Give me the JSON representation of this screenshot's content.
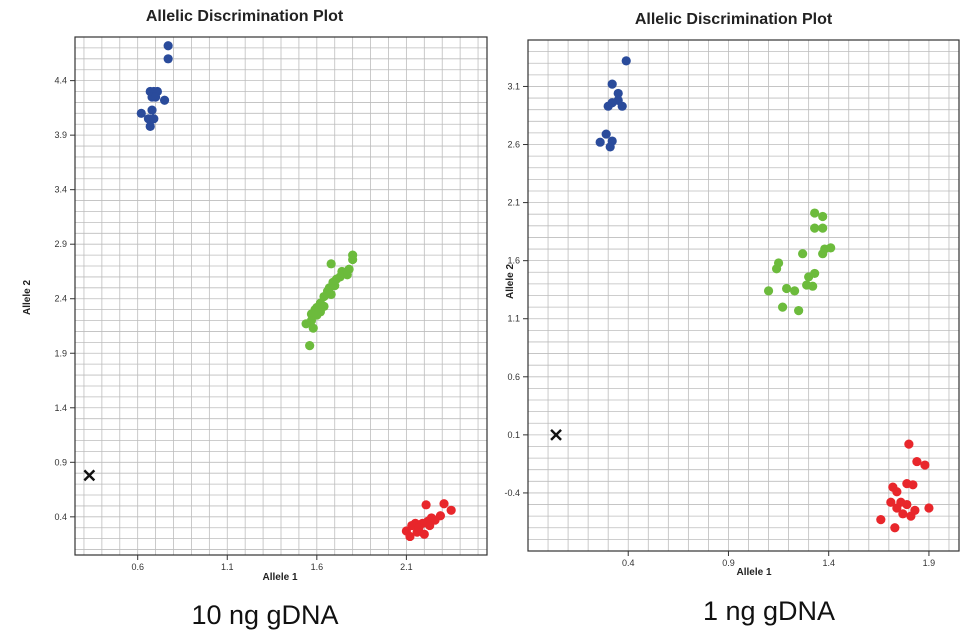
{
  "chart_data": [
    {
      "type": "scatter",
      "title": "Allelic Discrimination Plot",
      "xlabel": "Allele 1",
      "ylabel": "Allele 2",
      "caption": "10 ng gDNA",
      "xlim": [
        0.25,
        2.55
      ],
      "ylim": [
        0.05,
        4.8
      ],
      "xticks": [
        0.6,
        1.1,
        1.6,
        2.1
      ],
      "yticks": [
        0.4,
        0.9,
        1.4,
        1.9,
        2.4,
        2.9,
        3.4,
        3.9,
        4.4
      ],
      "grid": true,
      "colors": {
        "allele2": "#2a4b9b",
        "heterozygous": "#6cbb3c",
        "allele1": "#e8262b",
        "ntc": "#111111"
      },
      "series": [
        {
          "group": "allele2",
          "points": [
            [
              0.77,
              4.72
            ],
            [
              0.77,
              4.6
            ],
            [
              0.67,
              4.3
            ],
            [
              0.69,
              4.3
            ],
            [
              0.71,
              4.3
            ],
            [
              0.68,
              4.25
            ],
            [
              0.7,
              4.25
            ],
            [
              0.75,
              4.22
            ],
            [
              0.68,
              4.13
            ],
            [
              0.62,
              4.1
            ],
            [
              0.66,
              4.05
            ],
            [
              0.69,
              4.05
            ],
            [
              0.67,
              3.98
            ]
          ]
        },
        {
          "group": "heterozygous",
          "points": [
            [
              1.8,
              2.8
            ],
            [
              1.8,
              2.76
            ],
            [
              1.68,
              2.72
            ],
            [
              1.78,
              2.67
            ],
            [
              1.74,
              2.65
            ],
            [
              1.77,
              2.62
            ],
            [
              1.73,
              2.6
            ],
            [
              1.71,
              2.58
            ],
            [
              1.69,
              2.55
            ],
            [
              1.7,
              2.52
            ],
            [
              1.67,
              2.5
            ],
            [
              1.66,
              2.47
            ],
            [
              1.68,
              2.44
            ],
            [
              1.64,
              2.42
            ],
            [
              1.62,
              2.36
            ],
            [
              1.64,
              2.33
            ],
            [
              1.6,
              2.32
            ],
            [
              1.59,
              2.3
            ],
            [
              1.62,
              2.28
            ],
            [
              1.57,
              2.26
            ],
            [
              1.6,
              2.25
            ],
            [
              1.57,
              2.2
            ],
            [
              1.54,
              2.17
            ],
            [
              1.58,
              2.13
            ],
            [
              1.56,
              1.97
            ]
          ]
        },
        {
          "group": "allele1",
          "points": [
            [
              2.31,
              0.52
            ],
            [
              2.35,
              0.46
            ],
            [
              2.21,
              0.51
            ],
            [
              2.29,
              0.41
            ],
            [
              2.24,
              0.39
            ],
            [
              2.26,
              0.37
            ],
            [
              2.22,
              0.36
            ],
            [
              2.15,
              0.34
            ],
            [
              2.19,
              0.34
            ],
            [
              2.13,
              0.32
            ],
            [
              2.23,
              0.32
            ],
            [
              2.17,
              0.3
            ],
            [
              2.1,
              0.27
            ],
            [
              2.16,
              0.26
            ],
            [
              2.2,
              0.24
            ],
            [
              2.12,
              0.22
            ]
          ]
        },
        {
          "group": "ntc",
          "marker": "x",
          "points": [
            [
              0.33,
              0.78
            ]
          ]
        }
      ]
    },
    {
      "type": "scatter",
      "title": "Allelic Discrimination Plot",
      "xlabel": "Allele 1",
      "ylabel": "Allele 2",
      "caption": "1 ng gDNA",
      "xlim": [
        -0.1,
        2.05
      ],
      "ylim": [
        -0.9,
        3.5
      ],
      "xticks": [
        0.4,
        0.9,
        1.4,
        1.9
      ],
      "yticks": [
        -0.4,
        0.1,
        0.6,
        1.1,
        1.6,
        2.1,
        2.6,
        3.1
      ],
      "grid": true,
      "colors": {
        "allele2": "#2a4b9b",
        "heterozygous": "#6cbb3c",
        "allele1": "#e8262b",
        "ntc": "#111111"
      },
      "series": [
        {
          "group": "allele2",
          "points": [
            [
              0.39,
              3.32
            ],
            [
              0.32,
              3.12
            ],
            [
              0.35,
              3.04
            ],
            [
              0.35,
              2.98
            ],
            [
              0.32,
              2.96
            ],
            [
              0.3,
              2.93
            ],
            [
              0.37,
              2.93
            ],
            [
              0.29,
              2.69
            ],
            [
              0.32,
              2.63
            ],
            [
              0.26,
              2.62
            ],
            [
              0.31,
              2.58
            ]
          ]
        },
        {
          "group": "heterozygous",
          "points": [
            [
              1.33,
              2.01
            ],
            [
              1.37,
              1.98
            ],
            [
              1.33,
              1.88
            ],
            [
              1.37,
              1.88
            ],
            [
              1.41,
              1.71
            ],
            [
              1.38,
              1.7
            ],
            [
              1.37,
              1.66
            ],
            [
              1.15,
              1.58
            ],
            [
              1.27,
              1.66
            ],
            [
              1.14,
              1.53
            ],
            [
              1.33,
              1.49
            ],
            [
              1.3,
              1.46
            ],
            [
              1.29,
              1.39
            ],
            [
              1.32,
              1.38
            ],
            [
              1.19,
              1.36
            ],
            [
              1.23,
              1.34
            ],
            [
              1.1,
              1.34
            ],
            [
              1.17,
              1.2
            ],
            [
              1.25,
              1.17
            ]
          ]
        },
        {
          "group": "allele1",
          "points": [
            [
              1.8,
              0.02
            ],
            [
              1.84,
              -0.13
            ],
            [
              1.88,
              -0.16
            ],
            [
              1.79,
              -0.32
            ],
            [
              1.82,
              -0.33
            ],
            [
              1.72,
              -0.35
            ],
            [
              1.74,
              -0.39
            ],
            [
              1.71,
              -0.48
            ],
            [
              1.76,
              -0.48
            ],
            [
              1.79,
              -0.5
            ],
            [
              1.74,
              -0.53
            ],
            [
              1.83,
              -0.55
            ],
            [
              1.9,
              -0.53
            ],
            [
              1.77,
              -0.58
            ],
            [
              1.81,
              -0.6
            ],
            [
              1.66,
              -0.63
            ],
            [
              1.73,
              -0.7
            ]
          ]
        },
        {
          "group": "ntc",
          "marker": "x",
          "points": [
            [
              0.04,
              0.1
            ]
          ]
        }
      ]
    }
  ]
}
